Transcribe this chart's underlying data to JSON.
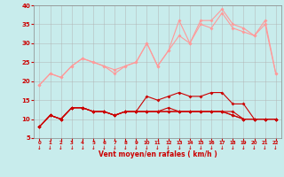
{
  "background_color": "#c8ecec",
  "grid_color": "#b0b0b0",
  "xlabel": "Vent moyen/en rafales ( km/h )",
  "xlabel_color": "#cc0000",
  "tick_color": "#cc0000",
  "xmin": 0,
  "xmax": 23,
  "ymin": 5,
  "ymax": 40,
  "yticks": [
    5,
    10,
    15,
    20,
    25,
    30,
    35,
    40
  ],
  "light_color": "#ff9999",
  "dark_color": "#cc0000",
  "marker_size": 2.0,
  "line_width": 0.8,
  "series_light": [
    [
      19,
      22,
      21,
      24,
      26,
      25,
      24,
      22,
      24,
      25,
      30,
      24,
      28,
      36,
      30,
      36,
      36,
      39,
      35,
      34,
      32,
      36,
      22
    ],
    [
      19,
      22,
      21,
      24,
      26,
      25,
      24,
      23,
      24,
      25,
      30,
      24,
      28,
      32,
      30,
      35,
      34,
      38,
      34,
      33,
      32,
      35,
      22
    ]
  ],
  "series_dark": [
    [
      8,
      11,
      10,
      13,
      13,
      12,
      12,
      11,
      12,
      12,
      16,
      15,
      16,
      17,
      16,
      16,
      17,
      17,
      14,
      14,
      10,
      10,
      10
    ],
    [
      8,
      11,
      10,
      13,
      13,
      12,
      12,
      11,
      12,
      12,
      12,
      12,
      13,
      12,
      12,
      12,
      12,
      12,
      12,
      10,
      10,
      10,
      10
    ],
    [
      8,
      11,
      10,
      13,
      13,
      12,
      12,
      11,
      12,
      12,
      12,
      12,
      12,
      12,
      12,
      12,
      12,
      12,
      11,
      10,
      10,
      10,
      10
    ],
    [
      8,
      11,
      10,
      13,
      13,
      12,
      12,
      11,
      12,
      12,
      12,
      12,
      12,
      12,
      12,
      12,
      12,
      12,
      11,
      10,
      10,
      10,
      10
    ]
  ],
  "tick_arrow": "↓"
}
